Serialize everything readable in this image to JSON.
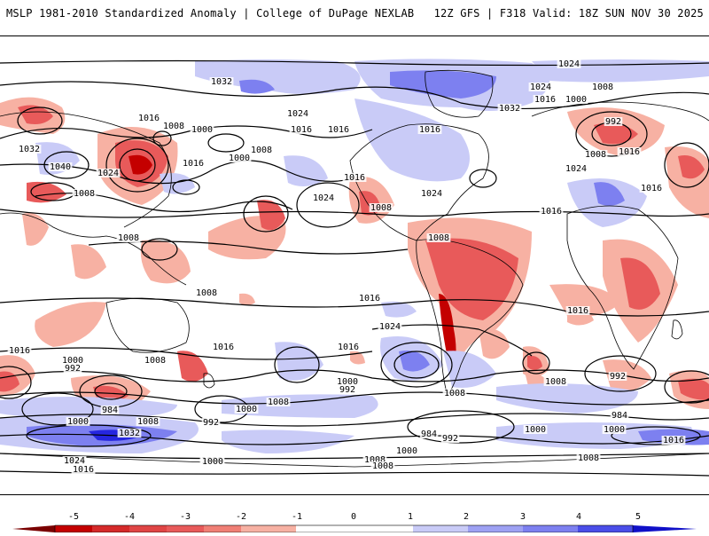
{
  "header": {
    "left_title": "MSLP 1981-2010 Standardized Anomaly | College of DuPage NEXLAB",
    "right_title": "12Z GFS | F318 Valid: 18Z SUN NOV 30 2025"
  },
  "colors": {
    "neg_strong": "#c40000",
    "neg_mid": "#e85a5a",
    "neg_light": "#f7b1a3",
    "pos_light": "#c9cbf7",
    "pos_mid": "#7d80f0",
    "pos_strong": "#2626e0",
    "contour": "#000000"
  },
  "contour_labels": [
    {
      "text": "1024"
    },
    {
      "text": "1032"
    },
    {
      "text": "1016"
    },
    {
      "text": "1008"
    },
    {
      "text": "1000"
    },
    {
      "text": "1032"
    },
    {
      "text": "1040"
    },
    {
      "text": "1024"
    },
    {
      "text": "1016"
    },
    {
      "text": "1008"
    },
    {
      "text": "1000"
    },
    {
      "text": "1016"
    },
    {
      "text": "1024"
    },
    {
      "text": "1016"
    },
    {
      "text": "1024"
    },
    {
      "text": "1032"
    },
    {
      "text": "1024"
    },
    {
      "text": "1016"
    },
    {
      "text": "1008"
    },
    {
      "text": "1000"
    },
    {
      "text": "992"
    },
    {
      "text": "1008"
    },
    {
      "text": "1016"
    },
    {
      "text": "1024"
    },
    {
      "text": "1016"
    },
    {
      "text": "1016"
    },
    {
      "text": "1024"
    },
    {
      "text": "1016"
    },
    {
      "text": "1008"
    },
    {
      "text": "1008"
    },
    {
      "text": "1008"
    },
    {
      "text": "1008"
    },
    {
      "text": "1008"
    },
    {
      "text": "1016"
    },
    {
      "text": "1016"
    },
    {
      "text": "1016"
    },
    {
      "text": "1000"
    },
    {
      "text": "992"
    },
    {
      "text": "1008"
    },
    {
      "text": "1024"
    },
    {
      "text": "1016"
    },
    {
      "text": "1008"
    },
    {
      "text": "1016"
    },
    {
      "text": "1016"
    },
    {
      "text": "1008"
    },
    {
      "text": "992"
    },
    {
      "text": "984"
    },
    {
      "text": "1000"
    },
    {
      "text": "1008"
    },
    {
      "text": "1000"
    },
    {
      "text": "992"
    },
    {
      "text": "1000"
    },
    {
      "text": "1008"
    },
    {
      "text": "992"
    },
    {
      "text": "984"
    },
    {
      "text": "1000"
    },
    {
      "text": "992"
    },
    {
      "text": "984"
    },
    {
      "text": "1008"
    },
    {
      "text": "1000"
    },
    {
      "text": "1008"
    },
    {
      "text": "1000"
    },
    {
      "text": "1016"
    },
    {
      "text": "1024"
    },
    {
      "text": "1000"
    },
    {
      "text": "1032"
    },
    {
      "text": "1024"
    },
    {
      "text": "1016"
    },
    {
      "text": "1000"
    },
    {
      "text": "1008"
    }
  ],
  "colorbar": {
    "ticks": [
      "-5",
      "-4",
      "-3",
      "-2",
      "-1",
      "0",
      "1",
      "2",
      "3",
      "4",
      "5"
    ]
  }
}
